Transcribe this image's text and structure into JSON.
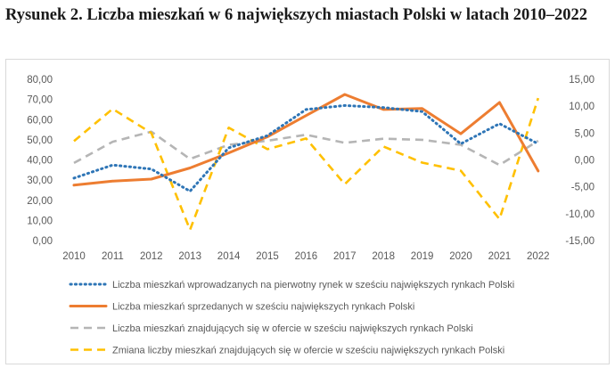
{
  "figure": {
    "title": "Rysunek 2. Liczba mieszkań w 6 największych miastach Polski w latach 2010–2022"
  },
  "chart_data": {
    "type": "line",
    "title": "Rysunek 2. Liczba mieszkań w 6 największych miastach Polski w latach 2010–2022",
    "categories": [
      "2010",
      "2011",
      "2012",
      "2013",
      "2014",
      "2015",
      "2016",
      "2017",
      "2018",
      "2019",
      "2020",
      "2021",
      "2022"
    ],
    "y_left": {
      "ylim": [
        0,
        80
      ],
      "ticks": [
        "0,00",
        "10,00",
        "20,00",
        "30,00",
        "40,00",
        "50,00",
        "60,00",
        "70,00",
        "80,00"
      ]
    },
    "y_right": {
      "ylim": [
        -15,
        15
      ],
      "ticks": [
        "-15,00",
        "-10,00",
        "-5,00",
        "0,00",
        "5,00",
        "10,00",
        "15,00"
      ]
    },
    "gridlines": false,
    "legend_position": "bottom",
    "series": [
      {
        "name": "Liczba mieszkań wprowadzanych na pierwotny rynek w sześciu największych rynkach Polski",
        "axis": "left",
        "style": "dotted",
        "color": "#2e75b6",
        "values": [
          31,
          37.5,
          35.5,
          24.5,
          46,
          52,
          65,
          67,
          66,
          64,
          48,
          58,
          48
        ]
      },
      {
        "name": "Liczba mieszkań sprzedanych w sześciu największych rynkach Polski",
        "axis": "left",
        "style": "solid",
        "color": "#ed7d31",
        "values": [
          27.5,
          29.5,
          30.5,
          36,
          43.5,
          51.5,
          62,
          72.5,
          65,
          65.5,
          53,
          68.5,
          34.5
        ]
      },
      {
        "name": "Liczba mieszkań znajdujących się w ofercie w sześciu największych rynkach Polski",
        "axis": "left",
        "style": "dashed",
        "color": "#b5b5b5",
        "values": [
          38.5,
          49,
          54,
          40.5,
          47.5,
          49.5,
          52.5,
          48.5,
          50.5,
          50,
          47.5,
          37.5,
          49.5
        ]
      },
      {
        "name": "Zmiana liczby mieszkań znajdujących się w ofercie w sześciu największych rynkach Polski",
        "axis": "right",
        "style": "dashed",
        "color": "#ffc000",
        "values": [
          3.5,
          9.5,
          5,
          -13,
          6,
          2,
          4,
          -4.5,
          2.5,
          -0.5,
          -2,
          -11,
          11.5
        ]
      }
    ]
  }
}
